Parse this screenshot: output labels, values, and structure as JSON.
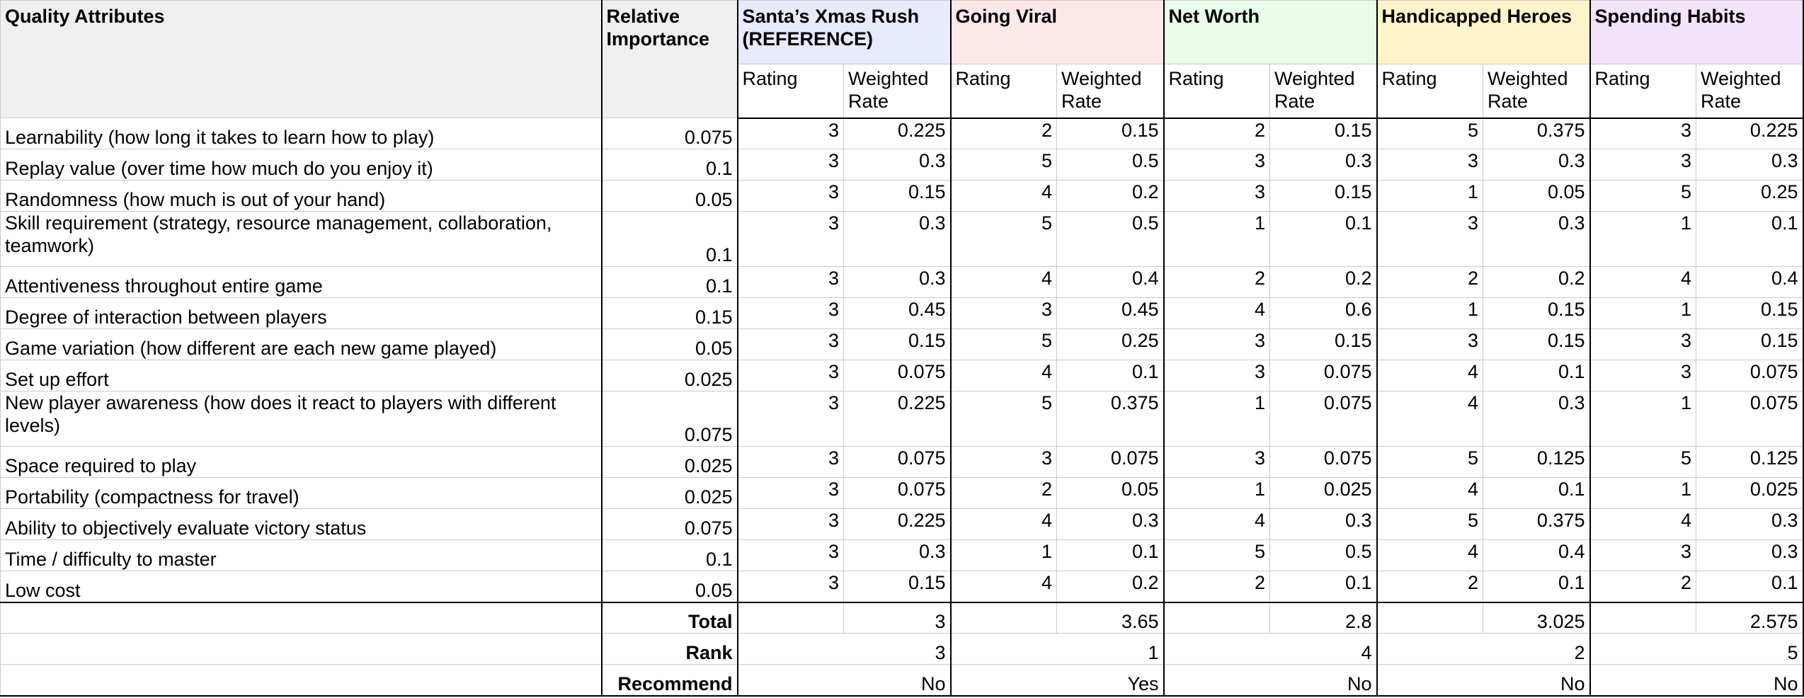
{
  "headers": {
    "attribute": "Quality Attributes",
    "importance": "Relative Importance",
    "rating": "Rating",
    "weighted": "Weighted Rate"
  },
  "games": [
    {
      "name": "Santa’s Xmas Rush (REFERENCE)",
      "color": "#e8eafd"
    },
    {
      "name": "Going Viral",
      "color": "#fce8e8"
    },
    {
      "name": "Net Worth",
      "color": "#eafde8"
    },
    {
      "name": "Handicapped Heroes",
      "color": "#fdf4c9"
    },
    {
      "name": "Spending Habits",
      "color": "#f3e3fb"
    }
  ],
  "rows": [
    {
      "attribute": "Learnability (how long it takes to learn how to play)",
      "importance": "0.075",
      "scores": [
        [
          "3",
          "0.225"
        ],
        [
          "2",
          "0.15"
        ],
        [
          "2",
          "0.15"
        ],
        [
          "5",
          "0.375"
        ],
        [
          "3",
          "0.225"
        ]
      ]
    },
    {
      "attribute": "Replay value (over time how much do you enjoy it)",
      "importance": "0.1",
      "scores": [
        [
          "3",
          "0.3"
        ],
        [
          "5",
          "0.5"
        ],
        [
          "3",
          "0.3"
        ],
        [
          "3",
          "0.3"
        ],
        [
          "3",
          "0.3"
        ]
      ]
    },
    {
      "attribute": "Randomness (how much is out of your hand)",
      "importance": "0.05",
      "scores": [
        [
          "3",
          "0.15"
        ],
        [
          "4",
          "0.2"
        ],
        [
          "3",
          "0.15"
        ],
        [
          "1",
          "0.05"
        ],
        [
          "5",
          "0.25"
        ]
      ]
    },
    {
      "attribute": "Skill requirement (strategy, resource management, collaboration, teamwork)",
      "importance": "0.1",
      "scores": [
        [
          "3",
          "0.3"
        ],
        [
          "5",
          "0.5"
        ],
        [
          "1",
          "0.1"
        ],
        [
          "3",
          "0.3"
        ],
        [
          "1",
          "0.1"
        ]
      ]
    },
    {
      "attribute": "Attentiveness throughout entire game",
      "importance": "0.1",
      "scores": [
        [
          "3",
          "0.3"
        ],
        [
          "4",
          "0.4"
        ],
        [
          "2",
          "0.2"
        ],
        [
          "2",
          "0.2"
        ],
        [
          "4",
          "0.4"
        ]
      ]
    },
    {
      "attribute": "Degree of interaction between players",
      "importance": "0.15",
      "scores": [
        [
          "3",
          "0.45"
        ],
        [
          "3",
          "0.45"
        ],
        [
          "4",
          "0.6"
        ],
        [
          "1",
          "0.15"
        ],
        [
          "1",
          "0.15"
        ]
      ]
    },
    {
      "attribute": "Game variation (how different are each new game played)",
      "importance": "0.05",
      "scores": [
        [
          "3",
          "0.15"
        ],
        [
          "5",
          "0.25"
        ],
        [
          "3",
          "0.15"
        ],
        [
          "3",
          "0.15"
        ],
        [
          "3",
          "0.15"
        ]
      ]
    },
    {
      "attribute": "Set up effort",
      "importance": "0.025",
      "scores": [
        [
          "3",
          "0.075"
        ],
        [
          "4",
          "0.1"
        ],
        [
          "3",
          "0.075"
        ],
        [
          "4",
          "0.1"
        ],
        [
          "3",
          "0.075"
        ]
      ]
    },
    {
      "attribute": "New player awareness (how does it react to players with different levels)",
      "importance": "0.075",
      "scores": [
        [
          "3",
          "0.225"
        ],
        [
          "5",
          "0.375"
        ],
        [
          "1",
          "0.075"
        ],
        [
          "4",
          "0.3"
        ],
        [
          "1",
          "0.075"
        ]
      ]
    },
    {
      "attribute": "Space required to play",
      "importance": "0.025",
      "scores": [
        [
          "3",
          "0.075"
        ],
        [
          "3",
          "0.075"
        ],
        [
          "3",
          "0.075"
        ],
        [
          "5",
          "0.125"
        ],
        [
          "5",
          "0.125"
        ]
      ]
    },
    {
      "attribute": "Portability (compactness for travel)",
      "importance": "0.025",
      "scores": [
        [
          "3",
          "0.075"
        ],
        [
          "2",
          "0.05"
        ],
        [
          "1",
          "0.025"
        ],
        [
          "4",
          "0.1"
        ],
        [
          "1",
          "0.025"
        ]
      ]
    },
    {
      "attribute": "Ability to objectively evaluate victory status",
      "importance": "0.075",
      "scores": [
        [
          "3",
          "0.225"
        ],
        [
          "4",
          "0.3"
        ],
        [
          "4",
          "0.3"
        ],
        [
          "5",
          "0.375"
        ],
        [
          "4",
          "0.3"
        ]
      ]
    },
    {
      "attribute": "Time / difficulty to master",
      "importance": "0.1",
      "scores": [
        [
          "3",
          "0.3"
        ],
        [
          "1",
          "0.1"
        ],
        [
          "5",
          "0.5"
        ],
        [
          "4",
          "0.4"
        ],
        [
          "3",
          "0.3"
        ]
      ]
    },
    {
      "attribute": "Low cost",
      "importance": "0.05",
      "scores": [
        [
          "3",
          "0.15"
        ],
        [
          "4",
          "0.2"
        ],
        [
          "2",
          "0.1"
        ],
        [
          "2",
          "0.1"
        ],
        [
          "2",
          "0.1"
        ]
      ]
    }
  ],
  "summary": {
    "total_label": "Total",
    "rank_label": "Rank",
    "recommend_label": "Recommend",
    "totals": [
      "3",
      "3.65",
      "2.8",
      "3.025",
      "2.575"
    ],
    "ranks": [
      "3",
      "1",
      "4",
      "2",
      "5"
    ],
    "recommend": [
      "No",
      "Yes",
      "No",
      "No",
      "No"
    ]
  }
}
